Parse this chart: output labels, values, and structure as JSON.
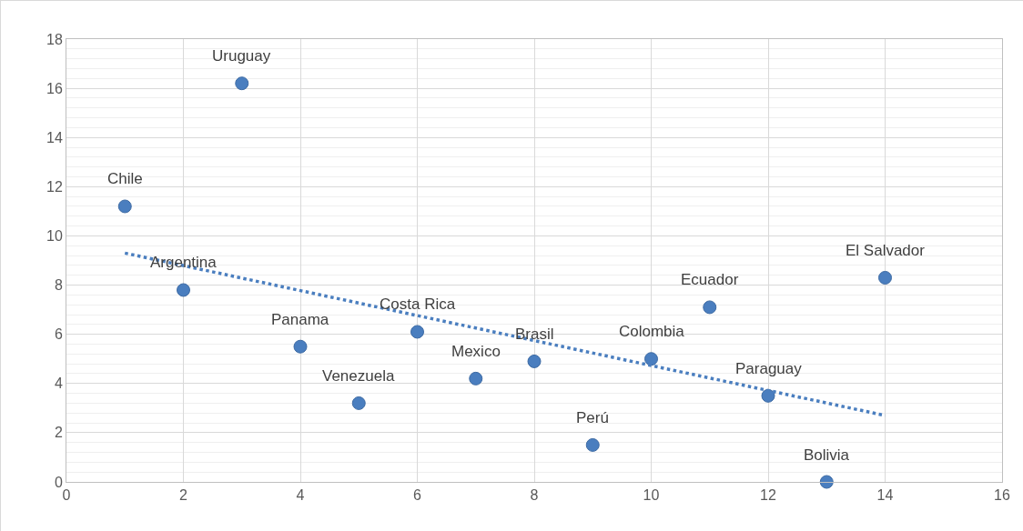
{
  "chart_data": {
    "type": "scatter",
    "series": [
      {
        "color": "#4a7ebf",
        "marker": "circle",
        "x": [
          1,
          2,
          3,
          4,
          5,
          6,
          7,
          8,
          9,
          10,
          11,
          12,
          13,
          14
        ],
        "values": [
          11.2,
          7.8,
          16.2,
          5.5,
          3.2,
          6.1,
          4.2,
          4.9,
          1.5,
          5.0,
          7.1,
          3.5,
          0,
          8.3
        ]
      },
      {
        "type": "line",
        "color": "#4a7ebf",
        "line_style": "dotted",
        "marker": "none",
        "x": [
          1,
          14
        ],
        "values": [
          9.3,
          2.7
        ]
      }
    ],
    "annotations": [
      {
        "text": "Chile",
        "x": 1,
        "y": 11.2
      },
      {
        "text": "Argentina",
        "x": 2,
        "y": 7.8
      },
      {
        "text": "Uruguay",
        "x": 3,
        "y": 16.2
      },
      {
        "text": "Panama",
        "x": 4,
        "y": 5.5
      },
      {
        "text": "Venezuela",
        "x": 5,
        "y": 3.2
      },
      {
        "text": "Costa Rica",
        "x": 6,
        "y": 6.1
      },
      {
        "text": "Mexico",
        "x": 7,
        "y": 4.2
      },
      {
        "text": "Brasil",
        "x": 8,
        "y": 4.9
      },
      {
        "text": "Perú",
        "x": 9,
        "y": 1.5
      },
      {
        "text": "Colombia",
        "x": 10,
        "y": 5.0
      },
      {
        "text": "Ecuador",
        "x": 11,
        "y": 7.1
      },
      {
        "text": "Paraguay",
        "x": 12,
        "y": 3.5
      },
      {
        "text": "Bolivia",
        "x": 13,
        "y": 0
      },
      {
        "text": "El Salvador",
        "x": 14,
        "y": 8.3
      }
    ],
    "xlim": [
      0,
      16
    ],
    "xticks": [
      0,
      2,
      4,
      6,
      8,
      10,
      12,
      14,
      16
    ],
    "ylim": [
      0,
      18
    ],
    "yticks": [
      0,
      2,
      4,
      6,
      8,
      10,
      12,
      14,
      16,
      18
    ],
    "grid": true,
    "legend": false
  }
}
